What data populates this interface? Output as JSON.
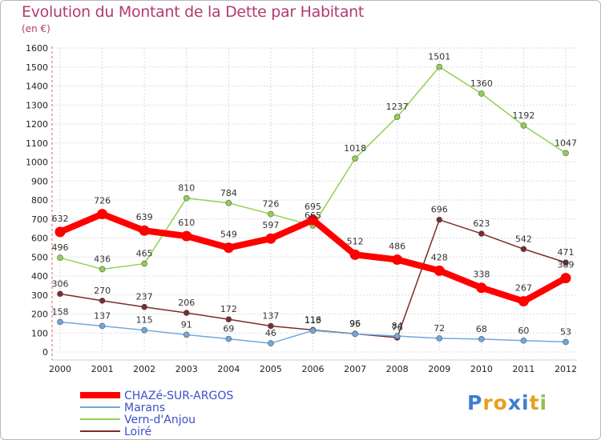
{
  "title": "Evolution du Montant de la Dette par Habitant",
  "subtitle": "(en €)",
  "logo": {
    "text": "Proxiti"
  },
  "chart_data": {
    "type": "line",
    "x": [
      "2000",
      "2001",
      "2002",
      "2003",
      "2004",
      "2005",
      "2006",
      "2007",
      "2008",
      "2009",
      "2010",
      "2011",
      "2012"
    ],
    "ylim": [
      0,
      1600
    ],
    "yticks": [
      "0",
      "100",
      "200",
      "300",
      "400",
      "500",
      "600",
      "700",
      "800",
      "900",
      "1000",
      "1100",
      "1200",
      "1300",
      "1400",
      "1500",
      "1600"
    ],
    "grid": true,
    "legend_position": "bottom-left",
    "series": [
      {
        "name": "CHAZé-SUR-ARGOS",
        "color": "#ff0000",
        "values": [
          632,
          726,
          639,
          610,
          549,
          597,
          695,
          512,
          486,
          428,
          338,
          267,
          389
        ]
      },
      {
        "name": "Marans",
        "color": "#6fa8dc",
        "values": [
          158,
          137,
          115,
          91,
          69,
          46,
          113,
          95,
          84,
          72,
          68,
          60,
          53
        ]
      },
      {
        "name": "Vern-d'Anjou",
        "color": "#92d050",
        "values": [
          496,
          436,
          465,
          810,
          784,
          726,
          665,
          1018,
          1237,
          1501,
          1360,
          1192,
          1047
        ]
      },
      {
        "name": "Loiré",
        "color": "#7b2c2c",
        "values": [
          306,
          270,
          237,
          206,
          172,
          137,
          116,
          96,
          76,
          696,
          623,
          542,
          471
        ]
      }
    ]
  }
}
